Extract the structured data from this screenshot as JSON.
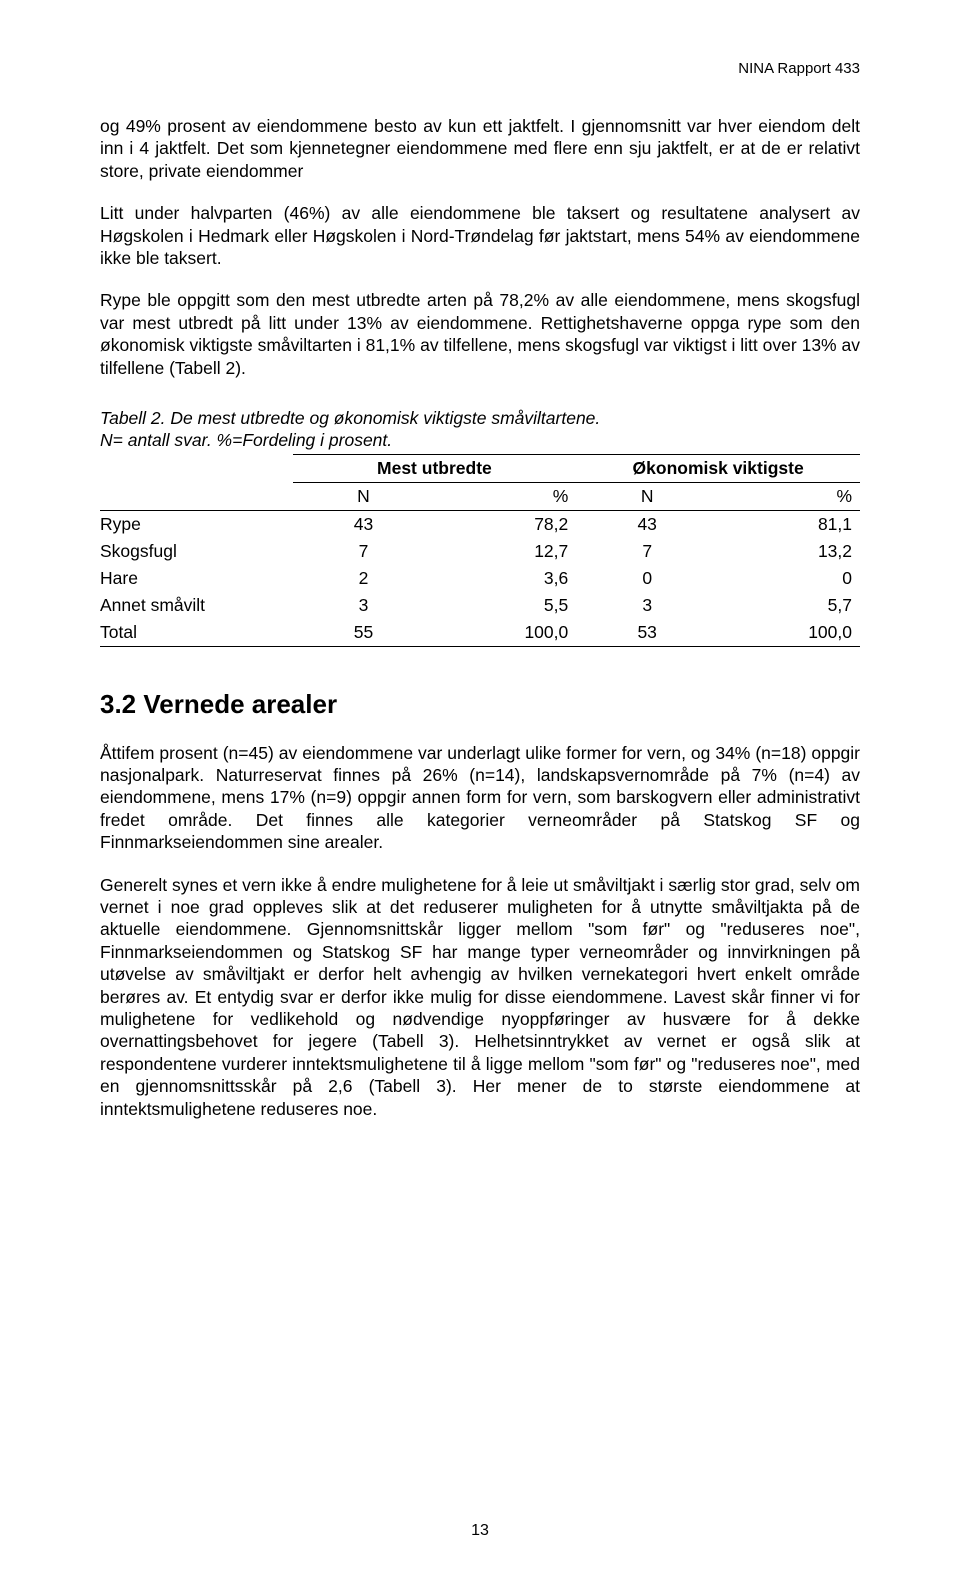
{
  "header": "NINA Rapport 433",
  "para1": "og 49% prosent av eiendommene besto av kun ett jaktfelt. I gjennomsnitt var hver eiendom delt inn i 4 jaktfelt. Det som kjennetegner eiendommene med flere enn sju jaktfelt, er at de er relativt store, private eiendommer",
  "para2": "Litt under halvparten (46%) av alle eiendommene ble taksert og resultatene analysert av Høgskolen i Hedmark eller Høgskolen i Nord-Trøndelag før jaktstart, mens 54% av eiendommene ikke ble taksert.",
  "para3": "Rype ble oppgitt som den mest utbredte arten på 78,2% av alle eiendommene, mens skogsfugl var mest utbredt på litt under 13% av eiendommene. Rettighetshaverne oppga rype som den økonomisk viktigste småviltarten i 81,1% av tilfellene, mens skogsfugl var viktigst i litt over 13% av tilfellene (Tabell 2).",
  "tableCaption1": "Tabell 2. De mest utbredte og økonomisk viktigste småviltartene.",
  "tableCaption2": "N= antall svar. %=Fordeling i prosent.",
  "table": {
    "superHeaders": [
      "Mest utbredte",
      "Økonomisk viktigste"
    ],
    "subHeaders": [
      "N",
      "%",
      "N",
      "%"
    ],
    "rows": [
      {
        "label": "Rype",
        "n1": "43",
        "p1": "78,2",
        "n2": "43",
        "p2": "81,1"
      },
      {
        "label": "Skogsfugl",
        "n1": "7",
        "p1": "12,7",
        "n2": "7",
        "p2": "13,2"
      },
      {
        "label": "Hare",
        "n1": "2",
        "p1": "3,6",
        "n2": "0",
        "p2": "0"
      },
      {
        "label": "Annet småvilt",
        "n1": "3",
        "p1": "5,5",
        "n2": "3",
        "p2": "5,7"
      }
    ],
    "total": {
      "label": "Total",
      "n1": "55",
      "p1": "100,0",
      "n2": "53",
      "p2": "100,0"
    }
  },
  "sectionHeading": "3.2 Vernede arealer",
  "para4": "Åttifem prosent (n=45) av eiendommene var underlagt ulike former for vern, og 34% (n=18) oppgir nasjonalpark. Naturreservat finnes på 26% (n=14), landskapsvernområde på 7% (n=4) av eiendommene, mens 17% (n=9) oppgir annen form for vern, som barskogvern eller administrativt fredet område. Det finnes alle kategorier verneområder på Statskog SF og Finnmarkseiendommen sine arealer.",
  "para5": "Generelt synes et vern ikke å endre mulighetene for å leie ut småviltjakt i særlig stor grad, selv om vernet i noe grad oppleves slik at det reduserer muligheten for å utnytte småviltjakta på de aktuelle eiendommene. Gjennomsnittskår ligger mellom \"som før\" og \"reduseres noe\", Finnmarkseiendommen og Statskog SF har mange typer verneområder og innvirkningen på utøvelse av småviltjakt er derfor helt avhengig av hvilken vernekategori hvert enkelt område berøres av. Et entydig svar er derfor ikke mulig for disse eiendommene.  Lavest skår finner vi for mulighetene for vedlikehold og nødvendige nyoppføringer av husvære for å dekke overnattingsbehovet for jegere (Tabell 3).  Helhetsinntrykket av vernet er også slik at respondentene vurderer inntektsmulighetene til å ligge mellom \"som før\" og \"reduseres noe\", med en gjennomsnittsskår på 2,6 (Tabell 3). Her mener de to største eiendommene at inntektsmulighetene reduseres noe.",
  "pageNumber": "13"
}
